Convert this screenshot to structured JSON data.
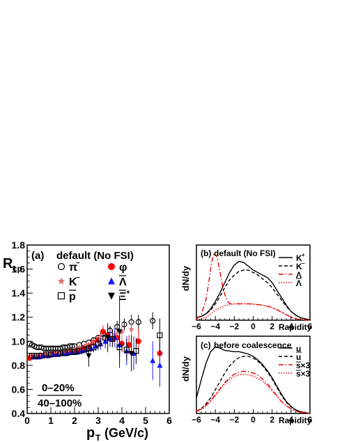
{
  "chart_data": [
    {
      "panel": "(a)",
      "type": "scatter",
      "title": "default (No FSI)",
      "ylabel": "R",
      "ylabel_sub": "cp",
      "xlabel": "p",
      "xlabel_sub": "T",
      "xlabel_unit": "(GeV/c)",
      "xlim": [
        0,
        6
      ],
      "ylim": [
        0.4,
        1.8
      ],
      "x_ticks": [
        "0",
        "1",
        "2",
        "3",
        "4",
        "5",
        "6"
      ],
      "y_ticks": [
        "0.4",
        "0.6",
        "0.8",
        "1.0",
        "1.2",
        "1.4",
        "1.6",
        "1.8"
      ],
      "ratio_label_top": "0–20%",
      "ratio_label_bottom": "40–100%",
      "legend": [
        {
          "label": "π",
          "sup": "−",
          "marker": "open-circle",
          "color": "#000000"
        },
        {
          "label": "φ",
          "sup": "",
          "marker": "filled-circle",
          "color": "#ff0000"
        },
        {
          "label": "K",
          "sup": "−",
          "marker": "star",
          "color": "#e07070"
        },
        {
          "label": "Λ",
          "sup": "",
          "marker": "triangle-up",
          "color": "#1a1aff",
          "overline": true
        },
        {
          "label": "p",
          "sup": "",
          "marker": "open-square",
          "color": "#000000",
          "overline": true
        },
        {
          "label": "Ξ",
          "sup": "+",
          "marker": "triangle-down",
          "color": "#000000",
          "overline": true
        }
      ],
      "series": [
        {
          "name": "π−",
          "marker": "open-circle",
          "color": "#000000",
          "x": [
            0.1,
            0.2,
            0.3,
            0.4,
            0.5,
            0.6,
            0.7,
            0.8,
            0.9,
            1.0,
            1.1,
            1.2,
            1.3,
            1.4,
            1.5,
            1.6,
            1.7,
            1.8,
            1.9,
            2.0,
            2.2,
            2.4,
            2.6,
            2.8,
            3.0,
            3.2,
            3.5,
            3.8,
            4.1,
            4.4,
            4.7,
            5.3
          ],
          "y": [
            0.98,
            0.97,
            0.96,
            0.95,
            0.95,
            0.95,
            0.94,
            0.94,
            0.94,
            0.94,
            0.94,
            0.94,
            0.94,
            0.94,
            0.95,
            0.95,
            0.95,
            0.96,
            0.96,
            0.96,
            0.97,
            0.98,
            0.99,
            1.01,
            1.03,
            1.06,
            1.09,
            1.12,
            1.14,
            1.16,
            1.16,
            1.17
          ],
          "err": [
            0.01,
            0.01,
            0.01,
            0.01,
            0.01,
            0.01,
            0.01,
            0.01,
            0.01,
            0.01,
            0.01,
            0.01,
            0.01,
            0.01,
            0.01,
            0.01,
            0.01,
            0.01,
            0.01,
            0.01,
            0.01,
            0.01,
            0.01,
            0.02,
            0.02,
            0.03,
            0.04,
            0.05,
            0.05,
            0.06,
            0.06,
            0.07
          ]
        },
        {
          "name": "φ",
          "marker": "filled-circle",
          "color": "#ff0000",
          "x": [
            0.1,
            0.25,
            0.4,
            0.55,
            0.7,
            0.85,
            1.0,
            1.2,
            1.4,
            1.6,
            1.8,
            2.0,
            2.2,
            2.4,
            2.6,
            2.8,
            3.0,
            3.2,
            3.4,
            3.6,
            3.8,
            4.0,
            4.3,
            4.7,
            5.6
          ],
          "y": [
            0.86,
            0.87,
            0.87,
            0.88,
            0.88,
            0.88,
            0.89,
            0.89,
            0.9,
            0.9,
            0.91,
            0.92,
            0.93,
            0.94,
            0.96,
            0.99,
            1.01,
            1.08,
            1.05,
            1.02,
            1.03,
            0.98,
            0.97,
            1.0,
            0.9
          ],
          "err": [
            0.02,
            0.02,
            0.02,
            0.02,
            0.02,
            0.02,
            0.02,
            0.02,
            0.02,
            0.02,
            0.02,
            0.02,
            0.02,
            0.03,
            0.03,
            0.03,
            0.04,
            0.05,
            0.05,
            0.06,
            0.06,
            0.07,
            0.08,
            0.1,
            0.12
          ]
        },
        {
          "name": "K−",
          "marker": "star",
          "color": "#e07070",
          "x": [
            0.15,
            0.35,
            0.55,
            0.75,
            0.95,
            1.15,
            1.35,
            1.55,
            1.75,
            1.95,
            2.2,
            2.5,
            2.8,
            3.1,
            3.4,
            3.7,
            4.0,
            4.4
          ],
          "y": [
            0.88,
            0.88,
            0.89,
            0.89,
            0.89,
            0.9,
            0.9,
            0.91,
            0.92,
            0.93,
            0.95,
            0.97,
            0.99,
            1.02,
            1.04,
            1.06,
            1.08,
            1.1
          ],
          "err": [
            0.01,
            0.01,
            0.01,
            0.01,
            0.01,
            0.01,
            0.01,
            0.01,
            0.01,
            0.01,
            0.02,
            0.02,
            0.03,
            0.04,
            0.05,
            0.06,
            0.07,
            0.08
          ]
        },
        {
          "name": "Λ̅",
          "marker": "triangle-up",
          "color": "#1a1aff",
          "x": [
            0.3,
            0.5,
            0.7,
            0.9,
            1.1,
            1.3,
            1.5,
            1.7,
            1.9,
            2.1,
            2.3,
            2.5,
            2.7,
            2.9,
            3.1,
            3.3,
            3.5,
            3.7,
            3.9,
            4.2,
            4.5,
            5.3,
            5.6
          ],
          "y": [
            0.87,
            0.87,
            0.88,
            0.88,
            0.89,
            0.89,
            0.9,
            0.9,
            0.91,
            0.91,
            0.92,
            0.93,
            0.94,
            0.96,
            0.98,
            1.0,
            1.02,
            1.03,
            0.97,
            0.92,
            0.9,
            0.84,
            0.8
          ],
          "err": [
            0.02,
            0.02,
            0.02,
            0.02,
            0.02,
            0.02,
            0.02,
            0.02,
            0.02,
            0.02,
            0.03,
            0.03,
            0.03,
            0.04,
            0.05,
            0.06,
            0.07,
            0.08,
            0.1,
            0.12,
            0.14,
            0.16,
            0.18
          ]
        },
        {
          "name": "p̅",
          "marker": "open-square",
          "color": "#000000",
          "x": [
            0.2,
            0.4,
            0.6,
            0.8,
            1.0,
            1.2,
            1.4,
            1.6,
            1.8,
            2.0,
            2.2,
            2.4,
            2.6,
            2.8,
            3.0,
            3.3,
            3.6,
            3.9,
            4.2,
            4.6,
            5.6
          ],
          "y": [
            0.88,
            0.88,
            0.88,
            0.89,
            0.89,
            0.9,
            0.9,
            0.9,
            0.91,
            0.91,
            0.92,
            0.93,
            0.94,
            0.95,
            0.98,
            1.03,
            1.02,
            0.95,
            0.93,
            0.92,
            1.05
          ],
          "err": [
            0.02,
            0.02,
            0.02,
            0.02,
            0.02,
            0.02,
            0.02,
            0.02,
            0.02,
            0.02,
            0.03,
            0.03,
            0.03,
            0.04,
            0.05,
            0.06,
            0.07,
            0.08,
            0.09,
            0.11,
            0.14
          ]
        },
        {
          "name": "Ξ̅+",
          "marker": "triangle-down",
          "color": "#000000",
          "x": [
            2.6,
            3.4,
            3.9,
            4.4
          ],
          "y": [
            0.88,
            1.03,
            1.08,
            0.9
          ],
          "err": [
            0.09,
            0.12,
            0.3,
            0.15
          ]
        }
      ]
    },
    {
      "panel": "(b)",
      "type": "line",
      "title": "default (No FSI)",
      "ylabel": "dN/dy",
      "xlabel": "Rapidity",
      "xlim": [
        -6,
        6
      ],
      "x_ticks": [
        "−6",
        "−4",
        "−2",
        "0",
        "2",
        "4",
        "6"
      ],
      "legend": [
        {
          "label": "K",
          "sup": "+",
          "style": "solid",
          "color": "#000000"
        },
        {
          "label": "K",
          "sup": "−",
          "style": "dashed",
          "color": "#000000"
        },
        {
          "label": "Λ",
          "sup": "",
          "style": "dashdot",
          "color": "#e00000"
        },
        {
          "label": "Λ",
          "sup": "",
          "style": "dotted",
          "color": "#e00000",
          "overline": true
        }
      ],
      "series": [
        {
          "name": "K+",
          "style": "solid",
          "color": "#000000",
          "x": [
            -6,
            -5.5,
            -5,
            -4.5,
            -4,
            -3.5,
            -3,
            -2.5,
            -2,
            -1.5,
            -1,
            -0.5,
            0,
            0.5,
            1,
            1.5,
            2,
            2.5,
            3,
            3.5,
            4,
            4.5,
            5,
            5.5,
            6
          ],
          "y": [
            0.01,
            0.015,
            0.025,
            0.045,
            0.075,
            0.11,
            0.15,
            0.19,
            0.22,
            0.235,
            0.23,
            0.215,
            0.2,
            0.19,
            0.18,
            0.17,
            0.15,
            0.12,
            0.09,
            0.06,
            0.035,
            0.02,
            0.01,
            0.005,
            0.002
          ]
        },
        {
          "name": "K−",
          "style": "dashed",
          "color": "#000000",
          "x": [
            -6,
            -5.5,
            -5,
            -4.5,
            -4,
            -3.5,
            -3,
            -2.5,
            -2,
            -1.5,
            -1,
            -0.5,
            0,
            0.5,
            1,
            1.5,
            2,
            2.5,
            3,
            3.5,
            4,
            4.5,
            5,
            5.5,
            6
          ],
          "y": [
            0.01,
            0.015,
            0.025,
            0.04,
            0.065,
            0.095,
            0.13,
            0.16,
            0.18,
            0.195,
            0.2,
            0.2,
            0.19,
            0.18,
            0.165,
            0.15,
            0.13,
            0.105,
            0.08,
            0.055,
            0.035,
            0.02,
            0.01,
            0.005,
            0.002
          ]
        },
        {
          "name": "Λ",
          "style": "dashdot",
          "color": "#e00000",
          "x": [
            -6,
            -5.5,
            -5,
            -4.7,
            -4.4,
            -4.1,
            -3.8,
            -3.5,
            -3.2,
            -2.9,
            -2.6,
            -2.3,
            -2,
            -1.5,
            -1,
            -0.5,
            0,
            0.5,
            1,
            1.5,
            2,
            2.5,
            3,
            3.5,
            4,
            4.5,
            5,
            5.5,
            6
          ],
          "y": [
            0.005,
            0.02,
            0.08,
            0.15,
            0.23,
            0.27,
            0.25,
            0.19,
            0.13,
            0.09,
            0.07,
            0.065,
            0.065,
            0.065,
            0.065,
            0.065,
            0.065,
            0.062,
            0.06,
            0.056,
            0.05,
            0.042,
            0.032,
            0.022,
            0.012,
            0.006,
            0.003,
            0.001,
            0.0005
          ]
        },
        {
          "name": "Λ̅",
          "style": "dotted",
          "color": "#e00000",
          "x": [
            -6,
            -5.5,
            -5,
            -4.5,
            -4,
            -3.5,
            -3,
            -2.5,
            -2,
            -1.5,
            -1,
            -0.5,
            0,
            0.5,
            1,
            1.5,
            2,
            2.5,
            3,
            3.5,
            4,
            4.5,
            5,
            5.5,
            6
          ],
          "y": [
            0.002,
            0.005,
            0.012,
            0.025,
            0.04,
            0.05,
            0.058,
            0.062,
            0.065,
            0.066,
            0.066,
            0.065,
            0.064,
            0.062,
            0.06,
            0.056,
            0.05,
            0.042,
            0.032,
            0.022,
            0.012,
            0.006,
            0.003,
            0.001,
            0.0005
          ]
        }
      ]
    },
    {
      "panel": "(c)",
      "type": "line",
      "title": "before coalescence",
      "ylabel": "dN/dy",
      "xlabel": "Rapidity",
      "xlim": [
        -6,
        6
      ],
      "x_ticks": [
        "−6",
        "−4",
        "−2",
        "0",
        "2",
        "4",
        "6"
      ],
      "legend": [
        {
          "label": "u",
          "sup": "",
          "style": "solid",
          "color": "#000000"
        },
        {
          "label": "u",
          "sup": "",
          "style": "dashed",
          "color": "#000000",
          "overline": true
        },
        {
          "label": "s×3",
          "sup": "",
          "style": "dashdot",
          "color": "#e00000",
          "overline_first": true
        },
        {
          "label": "s×3",
          "sup": "",
          "style": "dotted",
          "color": "#e00000",
          "overline_first": true
        }
      ],
      "series": [
        {
          "name": "u",
          "style": "solid",
          "color": "#000000",
          "x": [
            -6,
            -5.5,
            -5,
            -4.5,
            -4,
            -3.5,
            -3,
            -2.5,
            -2,
            -1.5,
            -1,
            -0.5,
            0,
            0.5,
            1,
            1.5,
            2,
            2.5,
            3,
            3.5,
            4,
            4.5,
            5,
            5.5,
            6
          ],
          "y": [
            0.13,
            0.28,
            0.42,
            0.52,
            0.56,
            0.55,
            0.53,
            0.525,
            0.52,
            0.52,
            0.51,
            0.5,
            0.48,
            0.45,
            0.41,
            0.36,
            0.3,
            0.23,
            0.16,
            0.1,
            0.06,
            0.03,
            0.015,
            0.006,
            0.002
          ]
        },
        {
          "name": "u̅",
          "style": "dashed",
          "color": "#000000",
          "x": [
            -6,
            -5.5,
            -5,
            -4.5,
            -4,
            -3.5,
            -3,
            -2.5,
            -2,
            -1.5,
            -1,
            -0.5,
            0,
            0.5,
            1,
            1.5,
            2,
            2.5,
            3,
            3.5,
            4,
            4.5,
            5,
            5.5,
            6
          ],
          "y": [
            0.02,
            0.04,
            0.08,
            0.13,
            0.2,
            0.27,
            0.34,
            0.4,
            0.44,
            0.47,
            0.48,
            0.48,
            0.465,
            0.44,
            0.4,
            0.35,
            0.29,
            0.22,
            0.15,
            0.095,
            0.055,
            0.03,
            0.015,
            0.006,
            0.002
          ]
        },
        {
          "name": "s̅×3 (dash-dot)",
          "style": "dashdot",
          "color": "#e00000",
          "x": [
            -6,
            -5.5,
            -5,
            -4.5,
            -4,
            -3.5,
            -3,
            -2.5,
            -2,
            -1.5,
            -1,
            -0.5,
            0,
            0.5,
            1,
            1.5,
            2,
            2.5,
            3,
            3.5,
            4,
            4.5,
            5,
            5.5,
            6
          ],
          "y": [
            0.02,
            0.04,
            0.07,
            0.11,
            0.16,
            0.21,
            0.26,
            0.3,
            0.33,
            0.35,
            0.355,
            0.35,
            0.34,
            0.32,
            0.29,
            0.25,
            0.2,
            0.15,
            0.1,
            0.065,
            0.04,
            0.02,
            0.01,
            0.004,
            0.001
          ]
        },
        {
          "name": "s̅×3 (dotted)",
          "style": "dotted",
          "color": "#e00000",
          "x": [
            -6,
            -5.5,
            -5,
            -4.5,
            -4,
            -3.5,
            -3,
            -2.5,
            -2,
            -1.5,
            -1,
            -0.5,
            0,
            0.5,
            1,
            1.5,
            2,
            2.5,
            3,
            3.5,
            4,
            4.5,
            5,
            5.5,
            6
          ],
          "y": [
            0.015,
            0.03,
            0.06,
            0.1,
            0.15,
            0.2,
            0.25,
            0.285,
            0.31,
            0.325,
            0.33,
            0.325,
            0.315,
            0.295,
            0.27,
            0.235,
            0.19,
            0.145,
            0.1,
            0.065,
            0.04,
            0.02,
            0.01,
            0.004,
            0.001
          ]
        }
      ]
    }
  ]
}
